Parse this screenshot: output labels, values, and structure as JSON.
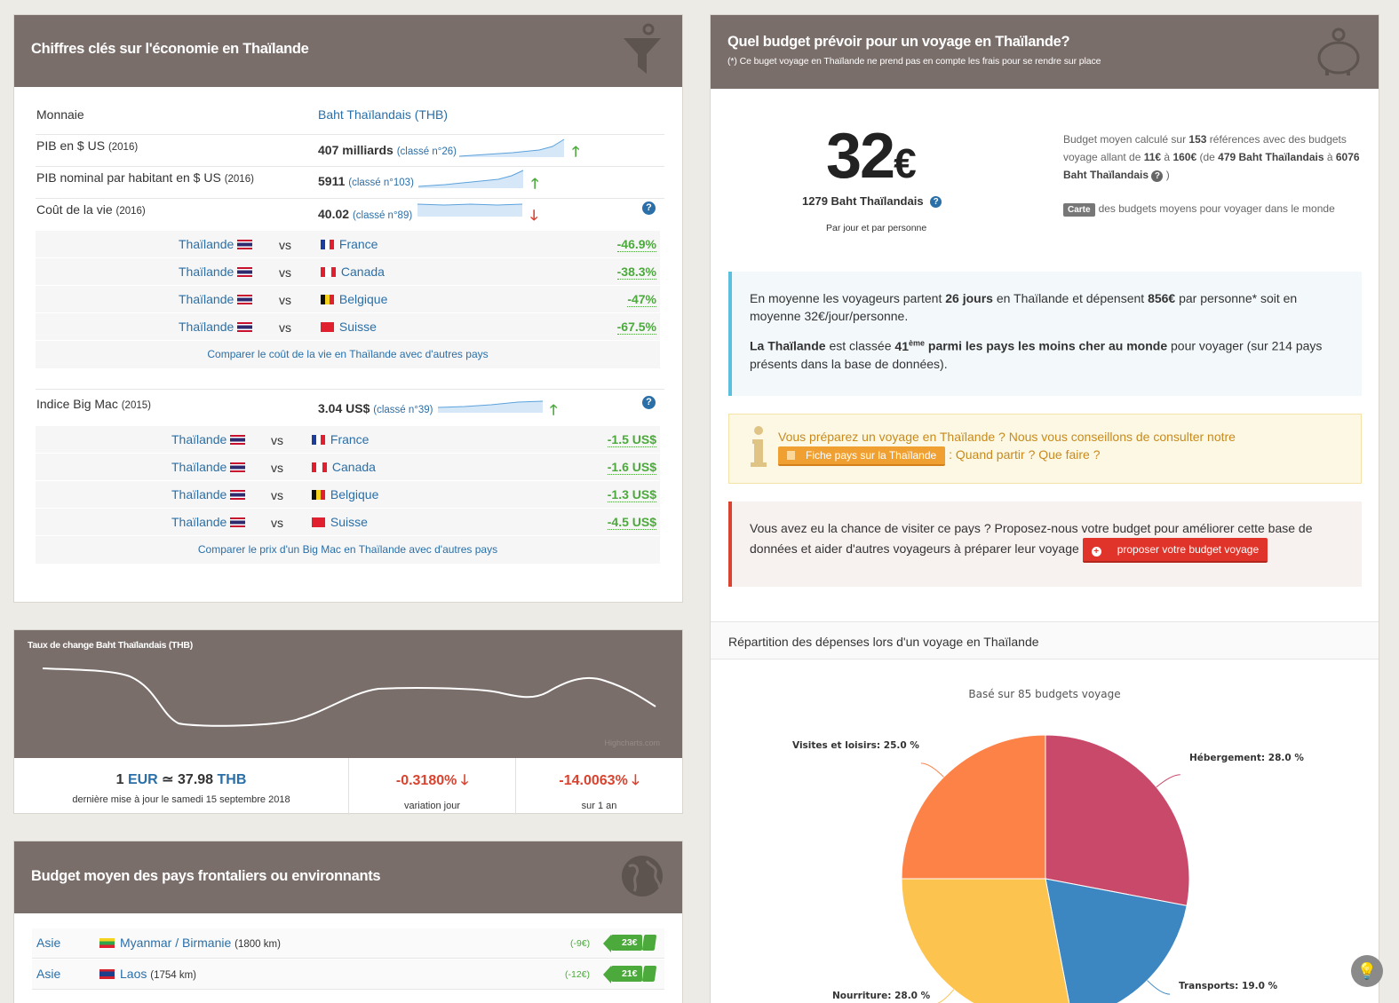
{
  "economy": {
    "title": "Chiffres clés sur l'économie en Thaïlande",
    "rows": [
      {
        "label": "Monnaie",
        "year": "",
        "value": "Baht Thaïlandais (THB)",
        "rank": ""
      },
      {
        "label": "PIB en $ US",
        "year": "(2016)",
        "value": "407 milliards",
        "rank": "(classé n°26)"
      },
      {
        "label": "PIB nominal par habitant en $ US",
        "year": "(2016)",
        "value": "5911",
        "rank": "(classé n°103)"
      },
      {
        "label": "Coût de la vie",
        "year": "(2016)",
        "value": "40.02",
        "rank": "(classé n°89)"
      }
    ],
    "vs_label": "vs",
    "home": "Thaïlande",
    "cost_comparisons": [
      {
        "country": "France",
        "value": "-46.9%"
      },
      {
        "country": "Canada",
        "value": "-38.3%"
      },
      {
        "country": "Belgique",
        "value": "-47%"
      },
      {
        "country": "Suisse",
        "value": "-67.5%"
      }
    ],
    "cost_link": "Comparer le coût de la vie en Thaïlande avec d'autres pays",
    "bigmac": {
      "label": "Indice Big Mac",
      "year": "(2015)",
      "value": "3.04 US$",
      "rank": "(classé n°39)"
    },
    "bigmac_comparisons": [
      {
        "country": "France",
        "value": "-1.5 US$"
      },
      {
        "country": "Canada",
        "value": "-1.6 US$"
      },
      {
        "country": "Belgique",
        "value": "-1.3 US$"
      },
      {
        "country": "Suisse",
        "value": "-4.5 US$"
      }
    ],
    "bigmac_link": "Comparer le prix d'un Big Mac en Thaïlande avec d'autres pays",
    "help": "?"
  },
  "exchange": {
    "title": "Taux de change Baht Thaïlandais (THB)",
    "credit": "Highcharts.com",
    "rate_one": "1",
    "rate_eur": "EUR",
    "rate_sym": "≃",
    "rate_value": "37.98",
    "rate_thb": "THB",
    "rate_note": "dernière mise à jour le samedi 15 septembre 2018",
    "daily": "-0.3180%",
    "daily_label": "variation jour",
    "yearly": "-14.0063%",
    "yearly_label": "sur 1 an"
  },
  "neighbours": {
    "title": "Budget moyen des pays frontaliers ou environnants",
    "items": [
      {
        "continent": "Asie",
        "name": "Myanmar / Birmanie",
        "dist": "(1800 km)",
        "diff": "(-9€)",
        "budget": "23€"
      },
      {
        "continent": "Asie",
        "name": "Laos",
        "dist": "(1754 km)",
        "diff": "(-12€)",
        "budget": "21€"
      }
    ]
  },
  "budget": {
    "title": "Quel budget prévoir pour un voyage en Thaïlande?",
    "subtitle": "(*) Ce buget voyage en Thaïlande ne prend pas en compte les frais pour se rendre sur place",
    "amount": "32",
    "currency": "€",
    "thb": "1279 Baht Thaïlandais",
    "per": "Par jour et par personne",
    "desc_1": "Budget moyen calculé sur ",
    "desc_refs": "153",
    "desc_2": " références avec des budgets voyage allant de ",
    "desc_min": "11€",
    "desc_3": " à ",
    "desc_max": "160€",
    "desc_4": " (de ",
    "desc_thbmin": "479 Baht Thaïlandais",
    "desc_5": " à ",
    "desc_thbmax": "6076 Baht Thaïlandais",
    "desc_6": " )",
    "carte_badge": "Carte",
    "carte_text": "des budgets moyens pour voyager dans le monde",
    "info1_a": "En moyenne les voyageurs partent ",
    "info1_days": "26 jours",
    "info1_b": " en Thaïlande et dépensent ",
    "info1_spend": "856€",
    "info1_c": " par personne* soit en moyenne 32€/jour/personne.",
    "info2_a": "La Thaïlande",
    "info2_b": " est classée ",
    "info2_rank": "41",
    "info2_sup": "ème",
    "info2_c": " parmi les pays les moins cher au monde",
    "info2_d": " pour voyager (sur 214 pays présents dans la base de données).",
    "tip_a": "Vous préparez un voyage en Thaïlande ? Nous vous conseillons de consulter notre",
    "tip_btn": "Fiche pays sur la Thaïlande",
    "tip_b": ": Quand partir ? Que faire ?",
    "propose_a": "Vous avez eu la chance de visiter ce pays ? Proposez-nous votre budget pour améliorer cette base de données et aider d'autres voyageurs à préparer leur voyage",
    "propose_btn": "proposer votre budget voyage",
    "repartition": "Répartition des dépenses lors d'un voyage en Thaïlande"
  },
  "chart_data": {
    "type": "pie",
    "title": "Basé sur 85 budgets voyage",
    "slices": [
      {
        "name": "Hébergement",
        "value": 28.0,
        "label": "Hébergement: 28.0 %",
        "color": "#c9496b"
      },
      {
        "name": "Transports",
        "value": 19.0,
        "label": "Transports: 19.0 %",
        "color": "#3c86c2"
      },
      {
        "name": "Nourriture",
        "value": 28.0,
        "label": "Nourriture: 28.0 %",
        "color": "#fdc34f"
      },
      {
        "name": "Visites et loisirs",
        "value": 25.0,
        "label": "Visites et loisirs: 25.0 %",
        "color": "#fd8247"
      }
    ]
  }
}
